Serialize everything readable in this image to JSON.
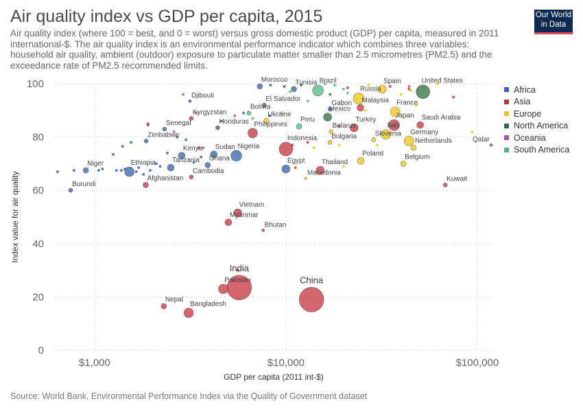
{
  "header": {
    "title": "Air quality index vs GDP per capita, 2015",
    "subtitle": "Air quality index (where 100 = best, and 0 = worst) versus gross domestic product (GDP) per capita, measured in 2011 international-$. The air quality index is an environmental performance indicator which combines three variables: household air quality, ambient (outdoor) exposure to particulate matter smaller than 2.5 micrometres (PM2.5) and the exceedance rate of PM2.5 recommended limits."
  },
  "logo": {
    "line1": "Our World",
    "line2": "in Data"
  },
  "source": "Source: World Bank, Environmental Performance Index via the Quality of Government dataset",
  "colors": {
    "Africa": "#3360a9",
    "Asia": "#c4323f",
    "Europe": "#f1c40f",
    "North America": "#2d6e3e",
    "Oceania": "#a652ba",
    "South America": "#4fb882"
  },
  "chart_data": {
    "type": "scatter",
    "title": "Air quality index vs GDP per capita, 2015",
    "xlabel": "GDP per capita (2011 int-$)",
    "ylabel": "Index value for air quality",
    "x_scale": "log",
    "xlim": [
      620,
      120000
    ],
    "ylim": [
      0,
      100
    ],
    "x_ticks": [
      1000,
      10000,
      100000
    ],
    "x_tick_labels": [
      "$1,000",
      "$10,000",
      "$100,000"
    ],
    "y_ticks": [
      0,
      20,
      40,
      60,
      80,
      100
    ],
    "grid": "dashed",
    "legend": {
      "position": "right",
      "entries": [
        "Africa",
        "Asia",
        "Europe",
        "North America",
        "Oceania",
        "South America"
      ]
    },
    "labeled_points": [
      {
        "label": "China",
        "region": "Asia",
        "x": 13600,
        "y": 19,
        "size": 18
      },
      {
        "label": "India",
        "region": "Asia",
        "x": 5700,
        "y": 23.5,
        "size": 18
      },
      {
        "label": "Pakistan",
        "region": "Asia",
        "x": 4700,
        "y": 23,
        "size": 7
      },
      {
        "label": "Bangladesh",
        "region": "Asia",
        "x": 3100,
        "y": 14,
        "size": 7
      },
      {
        "label": "Nepal",
        "region": "Asia",
        "x": 2300,
        "y": 16.5,
        "size": 4
      },
      {
        "label": "Vietnam",
        "region": "Asia",
        "x": 5600,
        "y": 51.5,
        "size": 6
      },
      {
        "label": "Myanmar",
        "region": "Asia",
        "x": 5000,
        "y": 48,
        "size": 5
      },
      {
        "label": "Bhutan",
        "region": "Asia",
        "x": 7600,
        "y": 45,
        "size": 2
      },
      {
        "label": "Burundi",
        "region": "Africa",
        "x": 750,
        "y": 60,
        "size": 3
      },
      {
        "label": "Niger",
        "region": "Africa",
        "x": 900,
        "y": 67.5,
        "size": 4
      },
      {
        "label": "Ethiopia",
        "region": "Africa",
        "x": 1520,
        "y": 67,
        "size": 7
      },
      {
        "label": "Afghanistan",
        "region": "Asia",
        "x": 1850,
        "y": 62,
        "size": 4
      },
      {
        "label": "Tanzania",
        "region": "Africa",
        "x": 2500,
        "y": 68.5,
        "size": 5
      },
      {
        "label": "Cambodia",
        "region": "Asia",
        "x": 3200,
        "y": 65,
        "size": 3
      },
      {
        "label": "Kenya",
        "region": "Africa",
        "x": 2850,
        "y": 73,
        "size": 5
      },
      {
        "label": "Ghana",
        "region": "Africa",
        "x": 3900,
        "y": 69.5,
        "size": 4
      },
      {
        "label": "Sudan",
        "region": "Africa",
        "x": 4200,
        "y": 73.5,
        "size": 5
      },
      {
        "label": "Nigeria",
        "region": "Africa",
        "x": 5500,
        "y": 73,
        "size": 8
      },
      {
        "label": "Zimbabwe",
        "region": "Africa",
        "x": 1860,
        "y": 78.5,
        "size": 3
      },
      {
        "label": "Senegal",
        "region": "Africa",
        "x": 2320,
        "y": 83,
        "size": 3
      },
      {
        "label": "Kyrgyzstan",
        "region": "Asia",
        "x": 3200,
        "y": 87,
        "size": 3
      },
      {
        "label": "Djibouti",
        "region": "Africa",
        "x": 3150,
        "y": 93.5,
        "size": 2
      },
      {
        "label": "Honduras",
        "region": "North America",
        "x": 4400,
        "y": 83.5,
        "size": 3
      },
      {
        "label": "Ukraine",
        "region": "Europe",
        "x": 7900,
        "y": 86,
        "size": 4
      },
      {
        "label": "Philippines",
        "region": "Asia",
        "x": 6700,
        "y": 81.5,
        "size": 7
      },
      {
        "label": "Bolivia",
        "region": "South America",
        "x": 6400,
        "y": 89,
        "size": 3
      },
      {
        "label": "El Salvador",
        "region": "North America",
        "x": 7700,
        "y": 92,
        "size": 3
      },
      {
        "label": "Morocco",
        "region": "Africa",
        "x": 7300,
        "y": 99,
        "size": 4
      },
      {
        "label": "Indonesia",
        "region": "Asia",
        "x": 10000,
        "y": 75.5,
        "size": 10
      },
      {
        "label": "Egypt",
        "region": "Africa",
        "x": 10000,
        "y": 68,
        "size": 6
      },
      {
        "label": "Macedonia",
        "region": "Europe",
        "x": 12700,
        "y": 64.5,
        "size": 2
      },
      {
        "label": "Thailand",
        "region": "Asia",
        "x": 15100,
        "y": 67.5,
        "size": 6
      },
      {
        "label": "Peru",
        "region": "South America",
        "x": 11700,
        "y": 84,
        "size": 4
      },
      {
        "label": "Bulgaria",
        "region": "Europe",
        "x": 17000,
        "y": 78,
        "size": 3
      },
      {
        "label": "Belarus",
        "region": "Europe",
        "x": 17200,
        "y": 82,
        "size": 3
      },
      {
        "label": "Mexico",
        "region": "North America",
        "x": 16500,
        "y": 87.5,
        "size": 6
      },
      {
        "label": "Gabon",
        "region": "Africa",
        "x": 17000,
        "y": 90.5,
        "size": 3
      },
      {
        "label": "Tunisia",
        "region": "Africa",
        "x": 11000,
        "y": 98,
        "size": 4
      },
      {
        "label": "Brazil",
        "region": "South America",
        "x": 14700,
        "y": 97.5,
        "size": 8
      },
      {
        "label": "Turkey",
        "region": "Asia",
        "x": 22700,
        "y": 83.5,
        "size": 6
      },
      {
        "label": "Malaysia",
        "region": "Asia",
        "x": 24500,
        "y": 91,
        "size": 5
      },
      {
        "label": "Russia",
        "region": "Europe",
        "x": 24000,
        "y": 94.5,
        "size": 8
      },
      {
        "label": "Spain",
        "region": "Europe",
        "x": 31800,
        "y": 98,
        "size": 6
      },
      {
        "label": "United States",
        "region": "North America",
        "x": 52000,
        "y": 97,
        "size": 10
      },
      {
        "label": "France",
        "region": "Europe",
        "x": 37200,
        "y": 89.5,
        "size": 7
      },
      {
        "label": "Japan",
        "region": "Asia",
        "x": 36700,
        "y": 84.5,
        "size": 8
      },
      {
        "label": "Italy",
        "region": "Europe",
        "x": 33300,
        "y": 81,
        "size": 7
      },
      {
        "label": "Slovenia",
        "region": "Europe",
        "x": 28700,
        "y": 79,
        "size": 3
      },
      {
        "label": "Poland",
        "region": "Europe",
        "x": 24600,
        "y": 71,
        "size": 5
      },
      {
        "label": "Germany",
        "region": "Europe",
        "x": 43900,
        "y": 78.5,
        "size": 7
      },
      {
        "label": "Netherlands",
        "region": "Europe",
        "x": 46400,
        "y": 76,
        "size": 4
      },
      {
        "label": "Belgium",
        "region": "Europe",
        "x": 41100,
        "y": 70,
        "size": 4
      },
      {
        "label": "Saudi Arabia",
        "region": "Asia",
        "x": 50300,
        "y": 84.5,
        "size": 5
      },
      {
        "label": "Qatar",
        "region": "Asia",
        "x": 118000,
        "y": 77,
        "size": 2
      },
      {
        "label": "Kuwait",
        "region": "Asia",
        "x": 68000,
        "y": 62,
        "size": 3
      }
    ],
    "unlabeled_points": [
      {
        "region": "Africa",
        "x": 640,
        "y": 67
      },
      {
        "region": "Africa",
        "x": 780,
        "y": 67.5
      },
      {
        "region": "Africa",
        "x": 1050,
        "y": 67.5
      },
      {
        "region": "Africa",
        "x": 1100,
        "y": 68
      },
      {
        "region": "Africa",
        "x": 1300,
        "y": 67.5
      },
      {
        "region": "Africa",
        "x": 1380,
        "y": 67.5
      },
      {
        "region": "Africa",
        "x": 1440,
        "y": 68
      },
      {
        "region": "Africa",
        "x": 1650,
        "y": 67
      },
      {
        "region": "Africa",
        "x": 1700,
        "y": 68.5
      },
      {
        "region": "Africa",
        "x": 1800,
        "y": 66
      },
      {
        "region": "Africa",
        "x": 1950,
        "y": 67.5
      },
      {
        "region": "Africa",
        "x": 2100,
        "y": 70
      },
      {
        "region": "Africa",
        "x": 2200,
        "y": 69
      },
      {
        "region": "Africa",
        "x": 1250,
        "y": 73.5
      },
      {
        "region": "Africa",
        "x": 1400,
        "y": 76.5
      },
      {
        "region": "Africa",
        "x": 1550,
        "y": 78
      },
      {
        "region": "Africa",
        "x": 2400,
        "y": 74
      },
      {
        "region": "Africa",
        "x": 3300,
        "y": 70.5
      },
      {
        "region": "Africa",
        "x": 3600,
        "y": 72.5
      },
      {
        "region": "Africa",
        "x": 3000,
        "y": 79
      },
      {
        "region": "Africa",
        "x": 2700,
        "y": 80
      },
      {
        "region": "Africa",
        "x": 1900,
        "y": 84.5
      },
      {
        "region": "Africa",
        "x": 6000,
        "y": 89
      },
      {
        "region": "Africa",
        "x": 8300,
        "y": 99.5
      },
      {
        "region": "Asia",
        "x": 1900,
        "y": 85
      },
      {
        "region": "Asia",
        "x": 3500,
        "y": 76
      },
      {
        "region": "Asia",
        "x": 5600,
        "y": 30
      },
      {
        "region": "Asia",
        "x": 4600,
        "y": 86
      },
      {
        "region": "Asia",
        "x": 10800,
        "y": 77
      },
      {
        "region": "Asia",
        "x": 13000,
        "y": 78
      },
      {
        "region": "Asia",
        "x": 11200,
        "y": 68.5
      },
      {
        "region": "Asia",
        "x": 19000,
        "y": 84
      },
      {
        "region": "Asia",
        "x": 21000,
        "y": 98.5
      },
      {
        "region": "Asia",
        "x": 44000,
        "y": 98
      },
      {
        "region": "Asia",
        "x": 75000,
        "y": 95
      },
      {
        "region": "Asia",
        "x": 35000,
        "y": 99
      },
      {
        "region": "Europe",
        "x": 9500,
        "y": 89
      },
      {
        "region": "Europe",
        "x": 20000,
        "y": 69
      },
      {
        "region": "Europe",
        "x": 14000,
        "y": 76
      },
      {
        "region": "Europe",
        "x": 19000,
        "y": 77
      },
      {
        "region": "Europe",
        "x": 26000,
        "y": 90
      },
      {
        "region": "Europe",
        "x": 30000,
        "y": 77
      },
      {
        "region": "Europe",
        "x": 45000,
        "y": 97.5
      },
      {
        "region": "Europe",
        "x": 40000,
        "y": 96
      },
      {
        "region": "Europe",
        "x": 94000,
        "y": 82
      },
      {
        "region": "Europe",
        "x": 62000,
        "y": 100
      },
      {
        "region": "Europe",
        "x": 27000,
        "y": 99.5
      },
      {
        "region": "Europe",
        "x": 48000,
        "y": 92
      },
      {
        "region": "North America",
        "x": 9800,
        "y": 99
      },
      {
        "region": "North America",
        "x": 12000,
        "y": 99.5
      },
      {
        "region": "North America",
        "x": 17000,
        "y": 96
      },
      {
        "region": "North America",
        "x": 8200,
        "y": 88
      },
      {
        "region": "Oceania",
        "x": 3400,
        "y": 89
      },
      {
        "region": "Oceania",
        "x": 2600,
        "y": 82
      },
      {
        "region": "Oceania",
        "x": 3700,
        "y": 76
      },
      {
        "region": "Oceania",
        "x": 5400,
        "y": 88
      },
      {
        "region": "Oceania",
        "x": 44000,
        "y": 99
      },
      {
        "region": "Oceania",
        "x": 2900,
        "y": 96
      },
      {
        "region": "South America",
        "x": 13000,
        "y": 93.5
      },
      {
        "region": "South America",
        "x": 18000,
        "y": 99.5
      },
      {
        "region": "South America",
        "x": 20000,
        "y": 98
      },
      {
        "region": "South America",
        "x": 6700,
        "y": 87
      },
      {
        "region": "South America",
        "x": 10500,
        "y": 97
      },
      {
        "region": "South America",
        "x": 21000,
        "y": 96.5
      },
      {
        "region": "South America",
        "x": 16000,
        "y": 100
      }
    ]
  }
}
